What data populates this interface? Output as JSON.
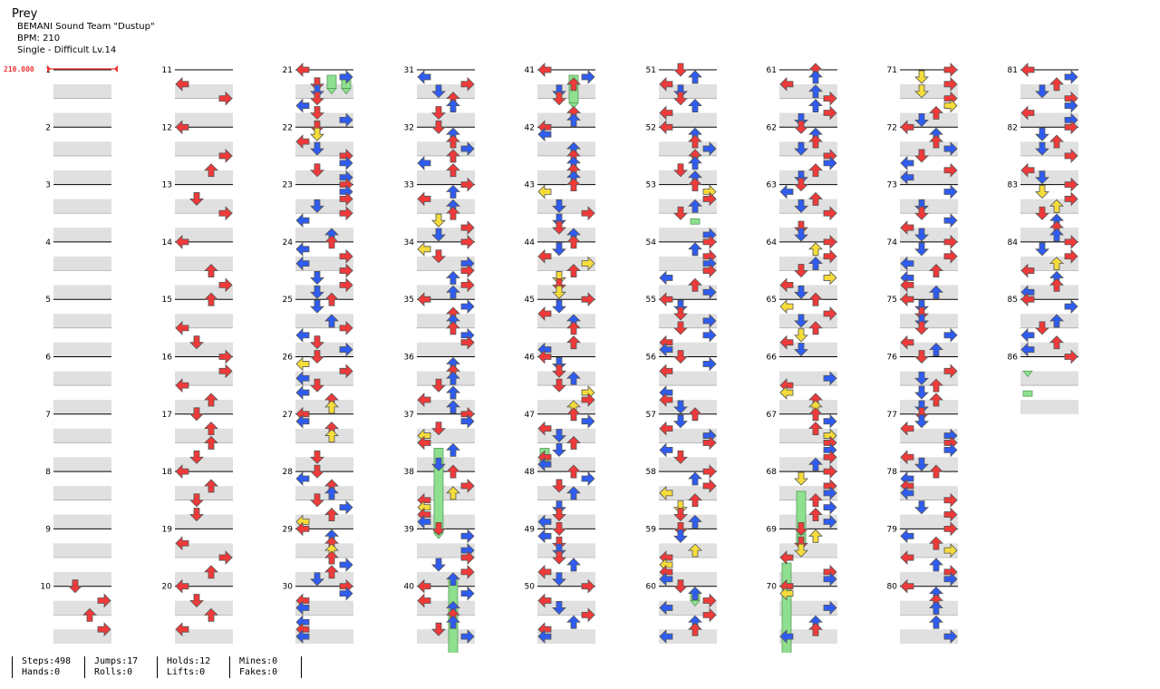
{
  "song": {
    "title": "Prey",
    "artist": "BEMANI Sound Team \"Dustup\"",
    "bpm_text": "BPM: 210",
    "difficulty_text": "Single - Difficult Lv.14"
  },
  "bpm_marker": {
    "value": "210.000"
  },
  "measures": [
    "1",
    "2",
    "3",
    "4",
    "5",
    "6",
    "7",
    "8",
    "9",
    "10",
    "11",
    "12",
    "13",
    "14",
    "15",
    "16",
    "17",
    "18",
    "19",
    "20",
    "21",
    "22",
    "23",
    "24",
    "25",
    "26",
    "27",
    "28",
    "29",
    "30",
    "31",
    "32",
    "33",
    "34",
    "35",
    "36",
    "37",
    "38",
    "39",
    "40",
    "41",
    "42",
    "43",
    "44",
    "45",
    "46",
    "47",
    "48",
    "49",
    "50",
    "51",
    "52",
    "53",
    "54",
    "55",
    "56",
    "57",
    "58",
    "59",
    "60",
    "61",
    "62",
    "63",
    "64",
    "65",
    "66",
    "67",
    "68",
    "69",
    "70",
    "71",
    "72",
    "73",
    "74",
    "75",
    "76",
    "77",
    "78",
    "79",
    "80",
    "81",
    "82",
    "83",
    "84",
    "85",
    "86"
  ],
  "stats": {
    "steps": "Steps:498",
    "hands": "Hands:0",
    "jumps": "Jumps:17",
    "rolls": "Rolls:0",
    "holds": "Holds:12",
    "lifts": "Lifts:0",
    "mines": "Mines:0",
    "fakes": "Fakes:0"
  },
  "colors": {
    "quarter": "#f03a3a",
    "eighth": "#2f5cf0",
    "sixteenth": "#f5dc3a",
    "hold": "#8ee08e",
    "band": "#e0e0e0"
  }
}
